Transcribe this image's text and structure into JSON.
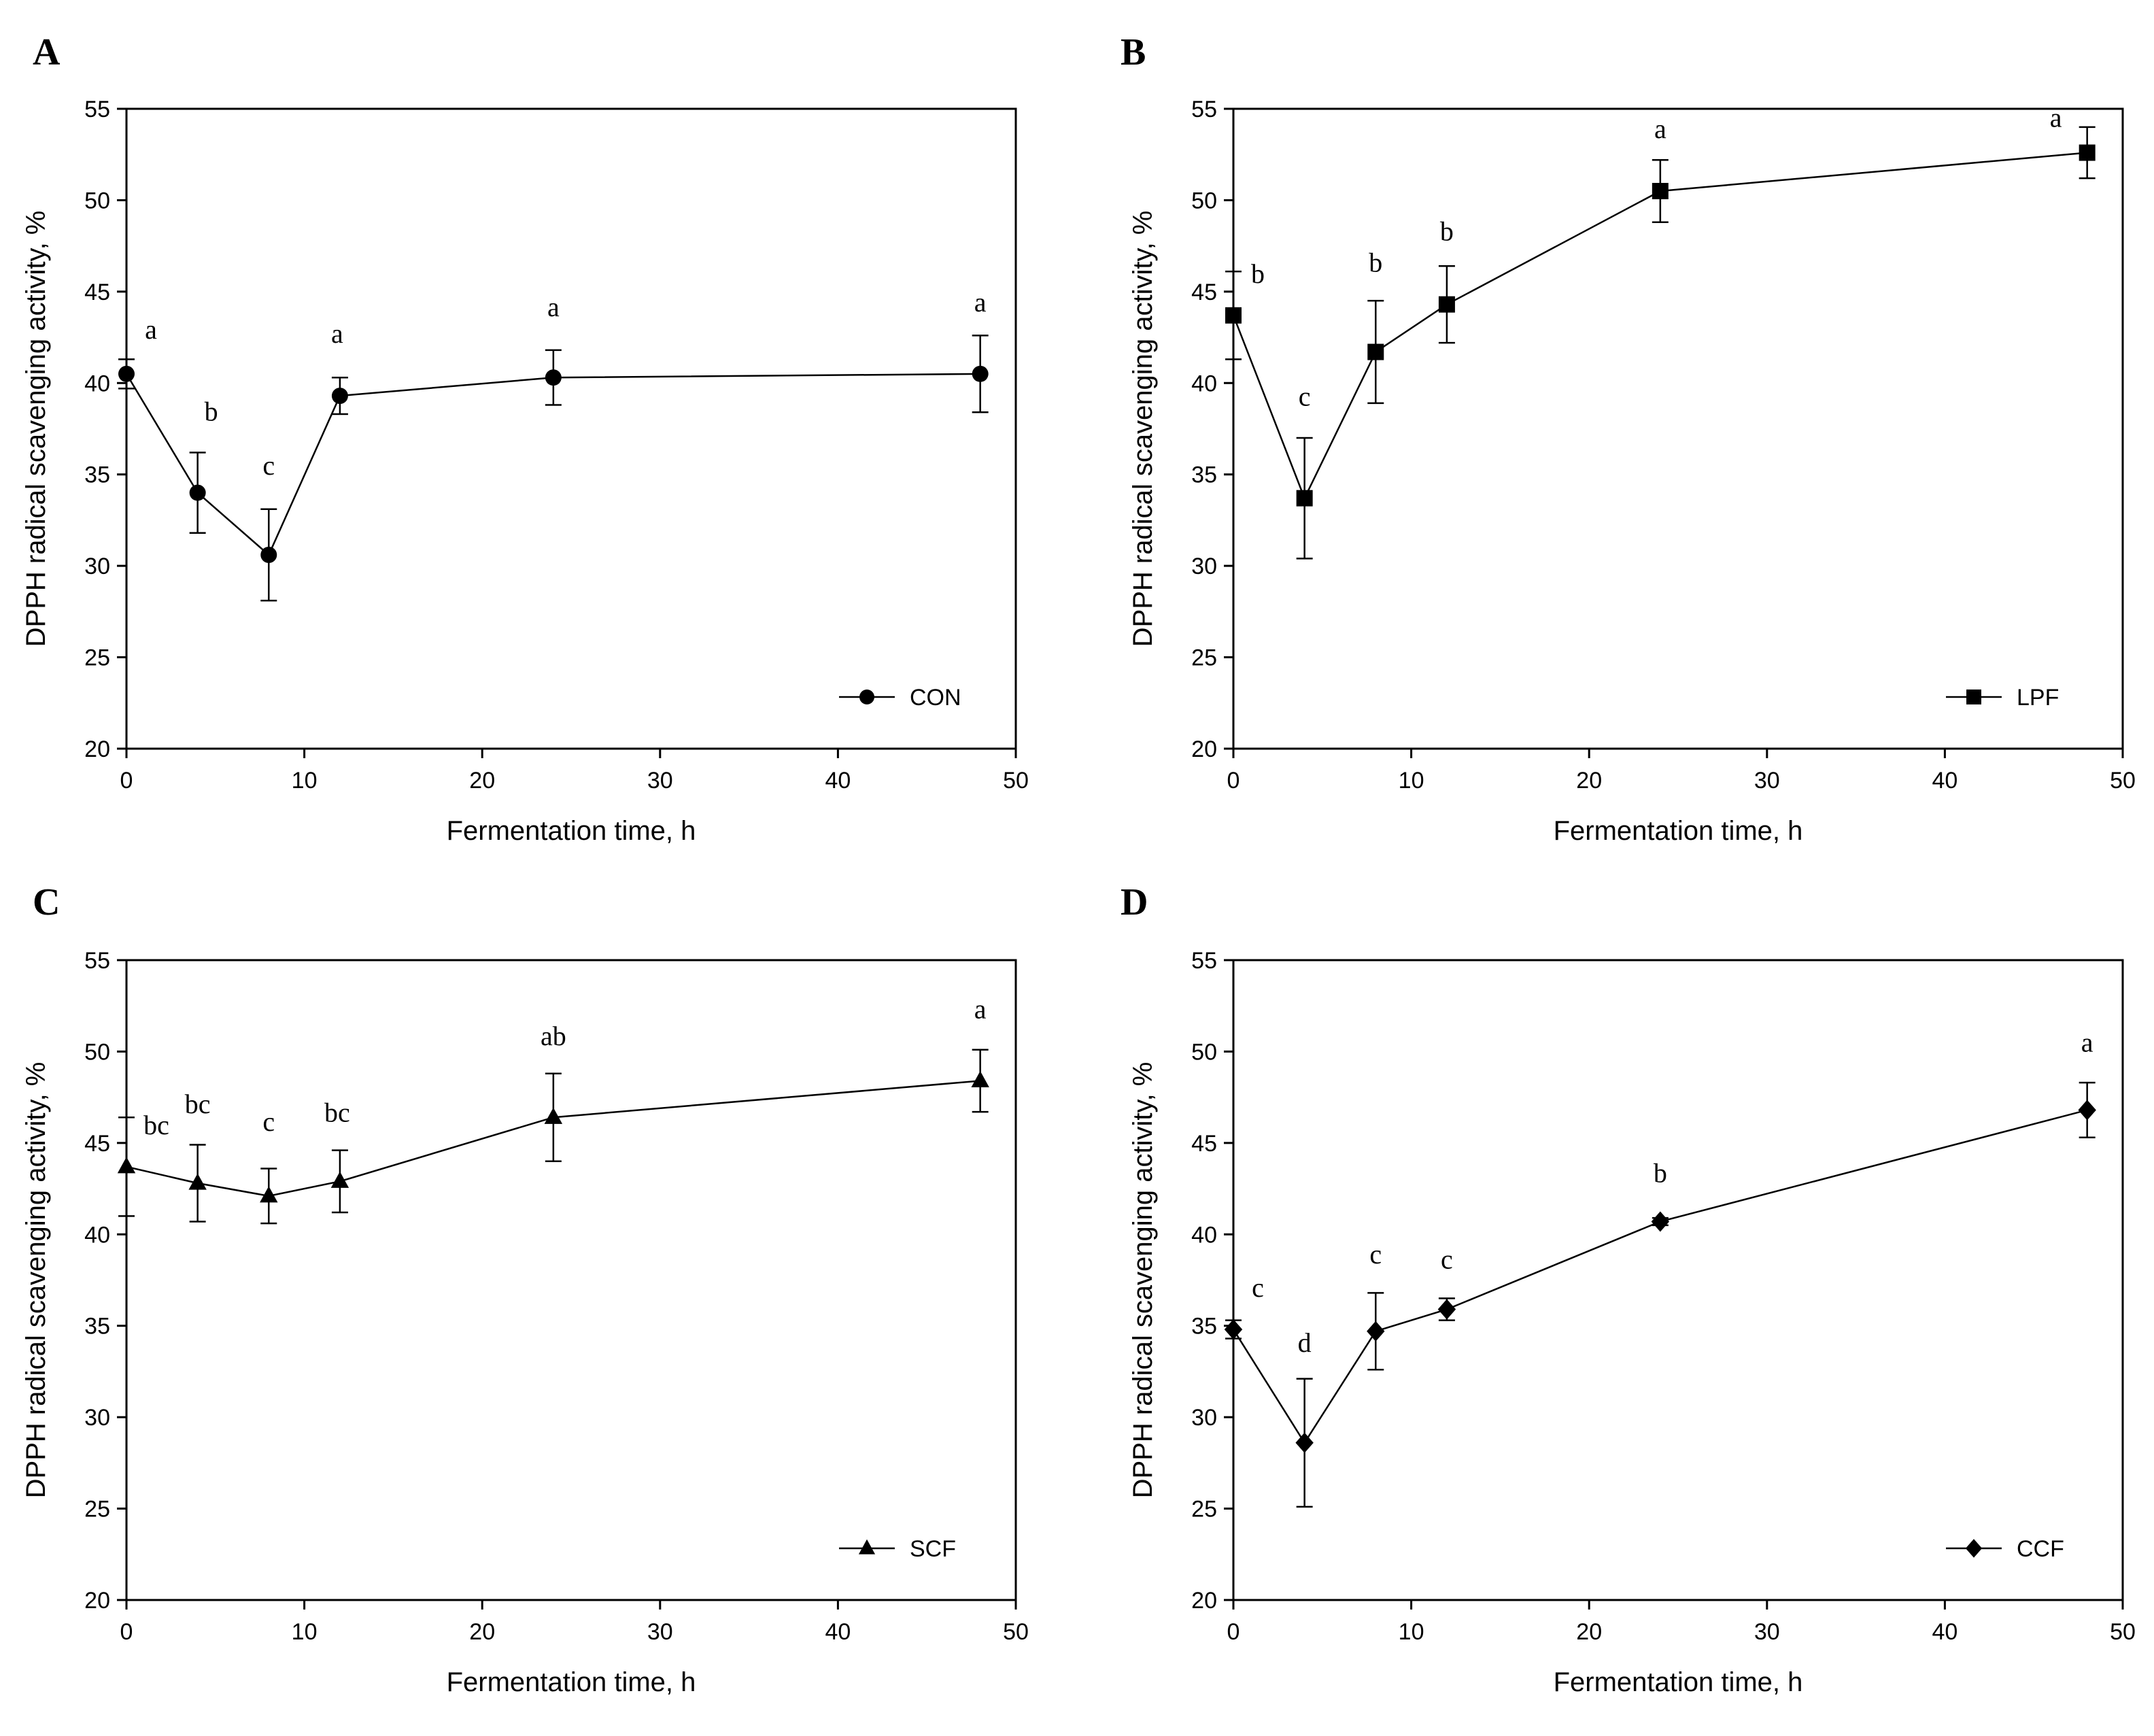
{
  "chart_data": [
    {
      "panel": "A",
      "type": "line",
      "series_name": "CON",
      "marker": "circle",
      "xlabel": "Fermentation time, h",
      "ylabel": "DPPH radical scavenging activity, %",
      "xlim": [
        0,
        50
      ],
      "ylim": [
        20,
        55
      ],
      "xticks": [
        0,
        10,
        20,
        30,
        40,
        50
      ],
      "yticks": [
        20,
        25,
        30,
        35,
        40,
        45,
        50,
        55
      ],
      "x": [
        0,
        4,
        8,
        12,
        24,
        48
      ],
      "y": [
        40.5,
        34.0,
        30.6,
        39.3,
        40.3,
        40.5
      ],
      "err": [
        0.8,
        2.2,
        2.5,
        1.0,
        1.5,
        2.1
      ],
      "letters": [
        "a",
        "b",
        "c",
        "a",
        "a",
        "a"
      ],
      "legend_position": "bottom-right"
    },
    {
      "panel": "B",
      "type": "line",
      "series_name": "LPF",
      "marker": "square",
      "xlabel": "Fermentation time, h",
      "ylabel": "DPPH radical scavenging activity, %",
      "xlim": [
        0,
        50
      ],
      "ylim": [
        20,
        55
      ],
      "xticks": [
        0,
        10,
        20,
        30,
        40,
        50
      ],
      "yticks": [
        20,
        25,
        30,
        35,
        40,
        45,
        50,
        55
      ],
      "x": [
        0,
        4,
        8,
        12,
        24,
        48
      ],
      "y": [
        43.7,
        33.7,
        41.7,
        44.3,
        50.5,
        52.6
      ],
      "err": [
        2.4,
        3.3,
        2.8,
        2.1,
        1.7,
        1.4
      ],
      "letters": [
        "b",
        "c",
        "b",
        "b",
        "a",
        "a"
      ],
      "legend_position": "bottom-right"
    },
    {
      "panel": "C",
      "type": "line",
      "series_name": "SCF",
      "marker": "triangle",
      "xlabel": "Fermentation time, h",
      "ylabel": "DPPH radical scavenging activity, %",
      "xlim": [
        0,
        50
      ],
      "ylim": [
        20,
        55
      ],
      "xticks": [
        0,
        10,
        20,
        30,
        40,
        50
      ],
      "yticks": [
        20,
        25,
        30,
        35,
        40,
        45,
        50,
        55
      ],
      "x": [
        0,
        4,
        8,
        12,
        24,
        48
      ],
      "y": [
        43.7,
        42.8,
        42.1,
        42.9,
        46.4,
        48.4
      ],
      "err": [
        2.7,
        2.1,
        1.5,
        1.7,
        2.4,
        1.7
      ],
      "letters": [
        "bc",
        "bc",
        "c",
        "bc",
        "ab",
        "a"
      ],
      "legend_position": "bottom-right"
    },
    {
      "panel": "D",
      "type": "line",
      "series_name": "CCF",
      "marker": "diamond",
      "xlabel": "Fermentation time, h",
      "ylabel": "DPPH radical scavenging activity, %",
      "xlim": [
        0,
        50
      ],
      "ylim": [
        20,
        55
      ],
      "xticks": [
        0,
        10,
        20,
        30,
        40,
        50
      ],
      "yticks": [
        20,
        25,
        30,
        35,
        40,
        45,
        50,
        55
      ],
      "x": [
        0,
        4,
        8,
        12,
        24,
        48
      ],
      "y": [
        34.8,
        28.6,
        34.7,
        35.9,
        40.7,
        46.8
      ],
      "err": [
        0.5,
        3.5,
        2.1,
        0.6,
        0.2,
        1.5
      ],
      "letters": [
        "c",
        "d",
        "c",
        "c",
        "b",
        "a"
      ],
      "legend_position": "bottom-right"
    }
  ]
}
